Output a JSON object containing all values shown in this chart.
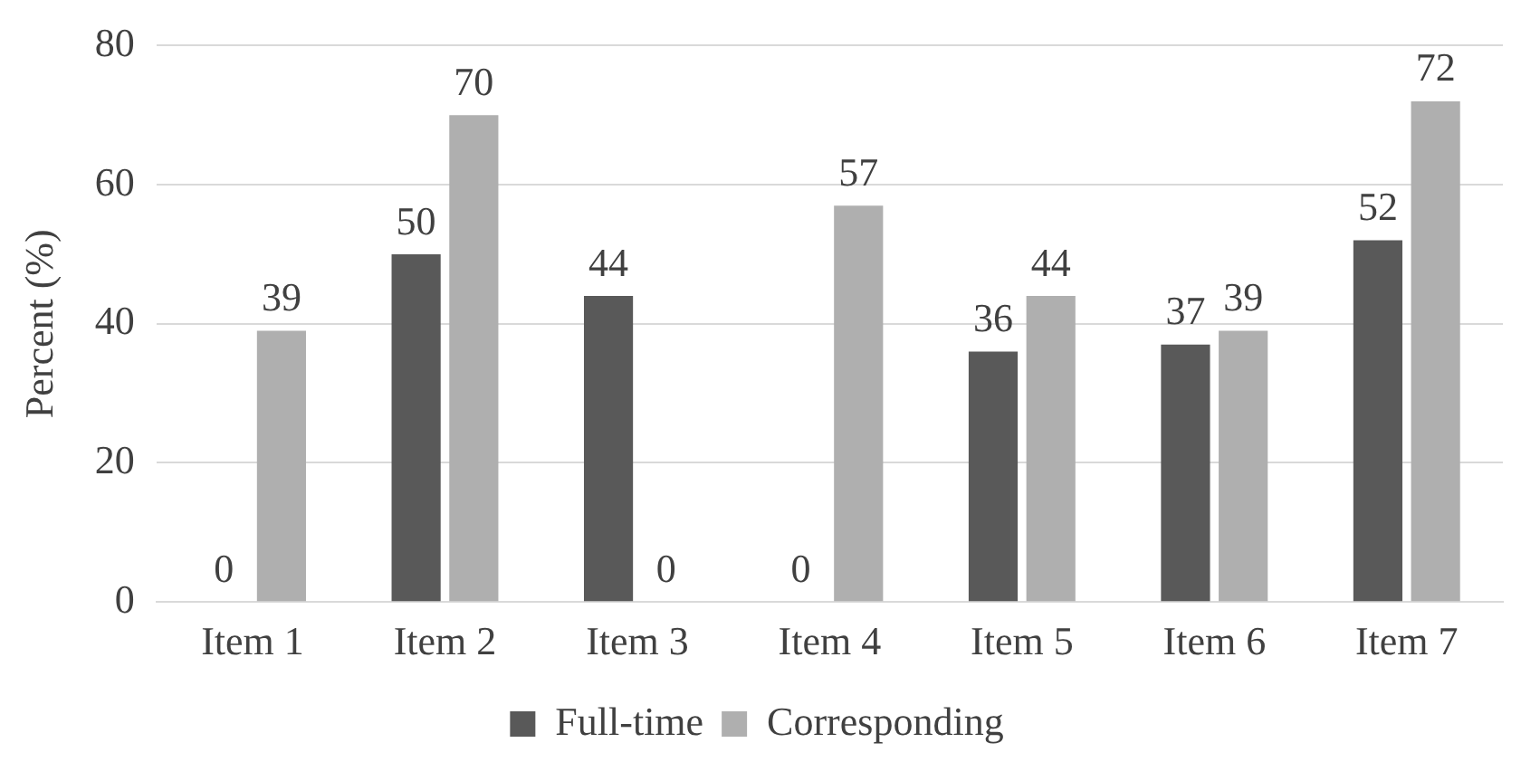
{
  "chart_data": {
    "type": "bar",
    "ylabel": "Percent (%)",
    "categories": [
      "Item 1",
      "Item 2",
      "Item 3",
      "Item 4",
      "Item 5",
      "Item 6",
      "Item 7"
    ],
    "series": [
      {
        "name": "Full-time",
        "color": "#595959",
        "values": [
          0,
          50,
          44,
          0,
          36,
          37,
          52
        ]
      },
      {
        "name": "Corresponding",
        "color": "#afafaf",
        "values": [
          39,
          70,
          0,
          57,
          44,
          39,
          72
        ]
      }
    ],
    "ylim": [
      0,
      80
    ],
    "yticks": [
      0,
      20,
      40,
      60,
      80
    ],
    "grid": "y",
    "legend": "bottom",
    "data_labels": true
  }
}
